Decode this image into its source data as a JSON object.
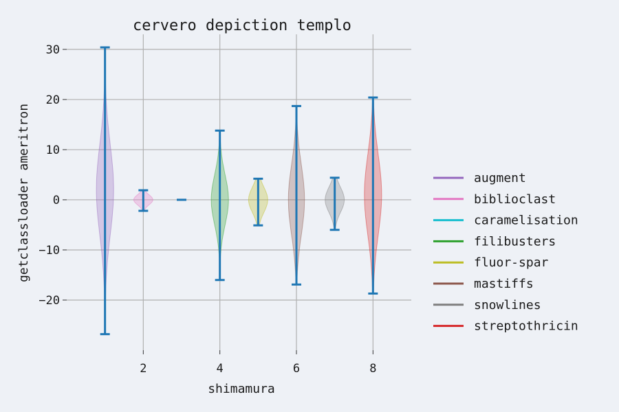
{
  "chart_data": {
    "type": "violin",
    "title": "cervero depiction templo",
    "xlabel": "shimamura",
    "ylabel": "getclassloader ameritron",
    "xlim": [
      0.0,
      9.0
    ],
    "ylim": [
      -30.0,
      33.0
    ],
    "xticks": [
      2,
      4,
      6,
      8
    ],
    "yticks": [
      -20,
      -10,
      0,
      10,
      20,
      30
    ],
    "ytick_labels": [
      "−20",
      "−10",
      "0",
      "10",
      "20",
      "30"
    ],
    "grid": true,
    "legend_position": "right",
    "stat_line_color": "#1f77b4",
    "series": [
      {
        "name": "augment",
        "position": 1,
        "color": "#9467bd",
        "min": -26.8,
        "max": 30.4,
        "width": 0.45,
        "mode": 2,
        "spread": 9
      },
      {
        "name": "biblioclast",
        "position": 2,
        "color": "#e377c2",
        "min": -2.2,
        "max": 1.9,
        "width": 0.5,
        "mode": 0,
        "spread": 1.0
      },
      {
        "name": "caramelisation",
        "position": 3,
        "color": "#17becf",
        "min": 0.0,
        "max": 0.0,
        "width": 0.0,
        "mode": 0,
        "spread": 1
      },
      {
        "name": "filibusters",
        "position": 4,
        "color": "#2ca02c",
        "min": -16.0,
        "max": 13.8,
        "width": 0.45,
        "mode": 0,
        "spread": 5
      },
      {
        "name": "fluor-spar",
        "position": 5,
        "color": "#bcbd22",
        "min": -5.1,
        "max": 4.2,
        "width": 0.5,
        "mode": 0,
        "spread": 2.5
      },
      {
        "name": "mastiffs",
        "position": 6,
        "color": "#8c564b",
        "min": -16.9,
        "max": 18.7,
        "width": 0.42,
        "mode": 0,
        "spread": 7
      },
      {
        "name": "snowlines",
        "position": 7,
        "color": "#7f7f7f",
        "min": -6.0,
        "max": 4.4,
        "width": 0.5,
        "mode": 0,
        "spread": 2.5
      },
      {
        "name": "streptothricin",
        "position": 8,
        "color": "#d62728",
        "min": -18.7,
        "max": 20.4,
        "width": 0.45,
        "mode": 1,
        "spread": 8
      }
    ]
  }
}
